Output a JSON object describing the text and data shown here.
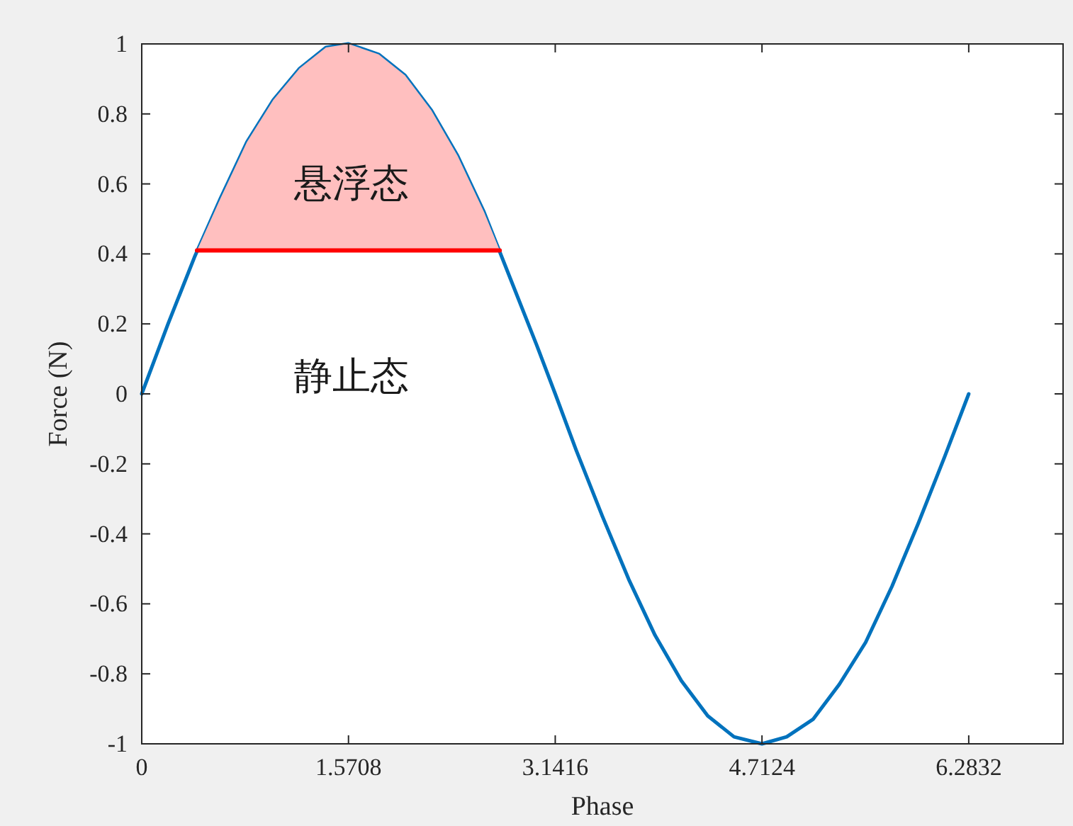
{
  "chart_data": {
    "type": "line",
    "xlabel": "Phase",
    "ylabel": "Force (N)",
    "xlim": [
      0,
      7
    ],
    "ylim": [
      -1,
      1
    ],
    "xticks": [
      0,
      1.5708,
      3.1416,
      4.7124,
      6.2832
    ],
    "yticks": [
      -1,
      -0.8,
      -0.6,
      -0.4,
      -0.2,
      0,
      0.2,
      0.4,
      0.6,
      0.8,
      1
    ],
    "series": [
      {
        "color": "#0072bd",
        "x": [
          0,
          0.2,
          0.4,
          0.6,
          0.8,
          1.0,
          1.2,
          1.4,
          1.5708,
          1.8,
          2.0,
          2.2,
          2.4,
          2.6,
          2.8,
          3.0,
          3.1416,
          3.3,
          3.5,
          3.7,
          3.9,
          4.1,
          4.3,
          4.5,
          4.7124,
          4.9,
          5.1,
          5.3,
          5.5,
          5.7,
          5.9,
          6.1,
          6.2832
        ],
        "values": [
          0,
          0.2,
          0.39,
          0.56,
          0.72,
          0.84,
          0.93,
          0.99,
          1,
          0.97,
          0.91,
          0.81,
          0.68,
          0.52,
          0.33,
          0.14,
          0,
          -0.16,
          -0.35,
          -0.53,
          -0.69,
          -0.82,
          -0.92,
          -0.98,
          -1,
          -0.98,
          -0.93,
          -0.83,
          -0.71,
          -0.55,
          -0.37,
          -0.18,
          0
        ]
      },
      {
        "color": "#ff0000",
        "x": [
          0.42,
          0.6,
          0.8,
          1.0,
          1.2,
          1.4,
          1.5708,
          1.8,
          2.0,
          2.2,
          2.4,
          2.6,
          2.72
        ],
        "values": [
          0.41,
          0.41,
          0.41,
          0.41,
          0.41,
          0.41,
          0.41,
          0.41,
          0.41,
          0.41,
          0.41,
          0.41,
          0.41
        ],
        "upper": [
          0.41,
          0.56,
          0.72,
          0.84,
          0.93,
          0.99,
          1,
          0.97,
          0.91,
          0.81,
          0.68,
          0.52,
          0.41
        ],
        "lower": [
          0.41,
          0.41,
          0.41,
          0.41,
          0.41,
          0.41,
          0.41,
          0.41,
          0.41,
          0.41,
          0.41,
          0.41,
          0.41
        ]
      }
    ],
    "annotations": [
      "悬浮态",
      "静止态"
    ]
  }
}
